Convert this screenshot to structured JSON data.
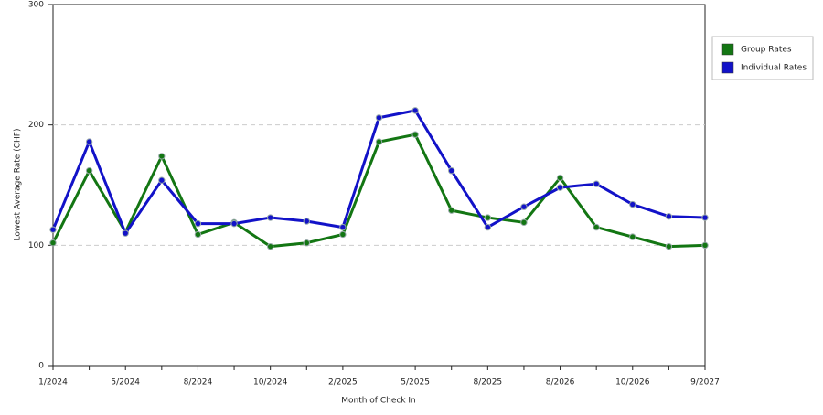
{
  "chart_data": {
    "type": "line",
    "x_label": "Month of Check In",
    "y_label": "Lowest Average Rate (CHF)",
    "categories": [
      "1/2024",
      null,
      "5/2024",
      null,
      "8/2024",
      null,
      "10/2024",
      null,
      "2/2025",
      null,
      "5/2025",
      null,
      "8/2025",
      null,
      "8/2026",
      null,
      "10/2026",
      null,
      "9/2027"
    ],
    "series": [
      {
        "name": "Group Rates",
        "color": "#137613",
        "values": [
          102,
          162,
          111,
          174,
          109,
          119,
          99,
          102,
          109,
          186,
          192,
          129,
          123,
          119,
          156,
          115,
          107,
          99,
          100
        ]
      },
      {
        "name": "Individual Rates",
        "color": "#1212c8",
        "values": [
          113,
          186,
          110,
          154,
          118,
          118,
          123,
          120,
          115,
          206,
          212,
          162,
          115,
          132,
          148,
          151,
          134,
          124,
          123
        ]
      }
    ],
    "ylim": [
      0,
      300
    ],
    "yticks": [
      0,
      100,
      200,
      300
    ],
    "grid": true,
    "legend": "right"
  }
}
